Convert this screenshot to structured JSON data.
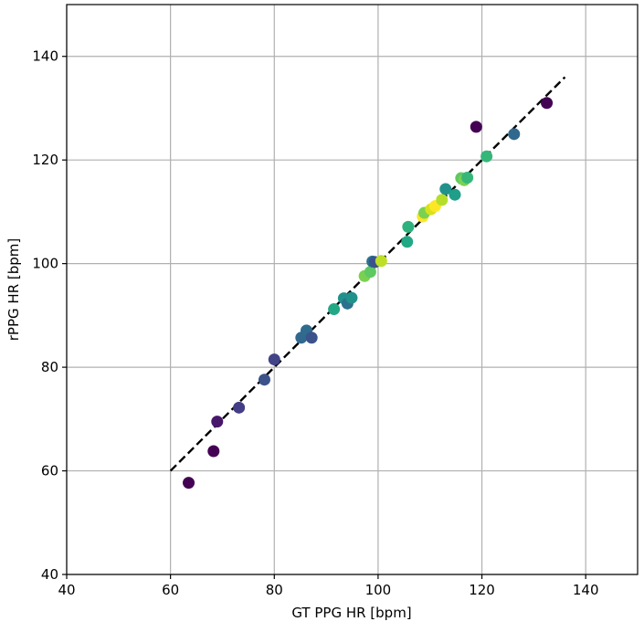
{
  "chart_data": {
    "type": "scatter",
    "title": "",
    "xlabel": "GT PPG HR [bpm]",
    "ylabel": "rPPG HR [bpm]",
    "xlim": [
      40,
      150
    ],
    "ylim": [
      40,
      150
    ],
    "xticks": [
      40,
      60,
      80,
      100,
      120,
      140
    ],
    "yticks": [
      40,
      60,
      80,
      100,
      120,
      140
    ],
    "grid": true,
    "legend": "none",
    "colormap": "viridis",
    "reference_line": {
      "style": "dashed",
      "color": "#000000",
      "x": [
        60,
        136
      ],
      "y": [
        60,
        136
      ]
    },
    "points": [
      {
        "x": 63.5,
        "y": 57.7,
        "color": "#440154"
      },
      {
        "x": 68.3,
        "y": 63.8,
        "color": "#440154"
      },
      {
        "x": 69.0,
        "y": 69.5,
        "color": "#46176b"
      },
      {
        "x": 73.2,
        "y": 72.2,
        "color": "#433e85"
      },
      {
        "x": 78.1,
        "y": 77.6,
        "color": "#3b528b"
      },
      {
        "x": 80.0,
        "y": 81.5,
        "color": "#414487"
      },
      {
        "x": 85.2,
        "y": 85.7,
        "color": "#31688e"
      },
      {
        "x": 86.2,
        "y": 87.1,
        "color": "#2f6b8e"
      },
      {
        "x": 87.2,
        "y": 85.7,
        "color": "#3b528b"
      },
      {
        "x": 91.5,
        "y": 91.2,
        "color": "#22a884"
      },
      {
        "x": 93.4,
        "y": 93.3,
        "color": "#21918c"
      },
      {
        "x": 94.1,
        "y": 92.3,
        "color": "#2c728e"
      },
      {
        "x": 94.9,
        "y": 93.4,
        "color": "#21918c"
      },
      {
        "x": 97.4,
        "y": 97.6,
        "color": "#7ad151"
      },
      {
        "x": 98.5,
        "y": 98.4,
        "color": "#5ec962"
      },
      {
        "x": 98.9,
        "y": 100.4,
        "color": "#2c728e"
      },
      {
        "x": 99.4,
        "y": 100.3,
        "color": "#3b528b"
      },
      {
        "x": 100.6,
        "y": 100.5,
        "color": "#bddf26"
      },
      {
        "x": 105.6,
        "y": 104.2,
        "color": "#22a884"
      },
      {
        "x": 105.8,
        "y": 107.1,
        "color": "#2db27d"
      },
      {
        "x": 108.6,
        "y": 109.1,
        "color": "#fde725"
      },
      {
        "x": 108.9,
        "y": 109.8,
        "color": "#7ad151"
      },
      {
        "x": 110.2,
        "y": 110.5,
        "color": "#d8e219"
      },
      {
        "x": 111.0,
        "y": 111.1,
        "color": "#fde725"
      },
      {
        "x": 112.3,
        "y": 112.3,
        "color": "#b5de2b"
      },
      {
        "x": 113.0,
        "y": 114.4,
        "color": "#21918c"
      },
      {
        "x": 114.8,
        "y": 113.3,
        "color": "#1f9e89"
      },
      {
        "x": 116.0,
        "y": 116.5,
        "color": "#5ec962"
      },
      {
        "x": 116.6,
        "y": 116.1,
        "color": "#7ad151"
      },
      {
        "x": 117.2,
        "y": 116.6,
        "color": "#35b779"
      },
      {
        "x": 118.9,
        "y": 126.4,
        "color": "#440154"
      },
      {
        "x": 120.9,
        "y": 120.7,
        "color": "#35b779"
      },
      {
        "x": 126.2,
        "y": 125.0,
        "color": "#31688e"
      },
      {
        "x": 132.5,
        "y": 131.0,
        "color": "#440154"
      }
    ]
  }
}
